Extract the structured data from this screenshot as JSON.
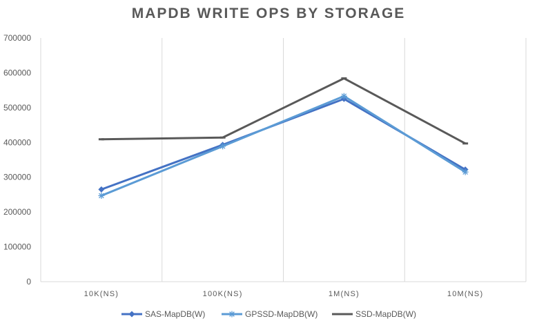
{
  "chart_data": {
    "type": "line",
    "title": "MAPDB WRITE OPS BY STORAGE",
    "xlabel": "",
    "ylabel": "",
    "categories": [
      "10K(NS)",
      "100K(NS)",
      "1M(NS)",
      "10M(NS)"
    ],
    "ylim": [
      0,
      700000
    ],
    "yticks": [
      "0",
      "100000",
      "200000",
      "300000",
      "400000",
      "500000",
      "600000",
      "700000"
    ],
    "grid": "vertical",
    "legend_position": "bottom",
    "series": [
      {
        "name": "SAS-MapDB(W)",
        "values": [
          265000,
          393000,
          525000,
          322000
        ],
        "color": "#4472C4",
        "marker": "diamond"
      },
      {
        "name": "GPSSD-MapDB(W)",
        "values": [
          247000,
          389000,
          533000,
          315000
        ],
        "color": "#5B9BD5",
        "marker": "asterisk"
      },
      {
        "name": "SSD-MapDB(W)",
        "values": [
          409000,
          414000,
          584000,
          397000
        ],
        "color": "#595959",
        "marker": "dash"
      }
    ]
  }
}
